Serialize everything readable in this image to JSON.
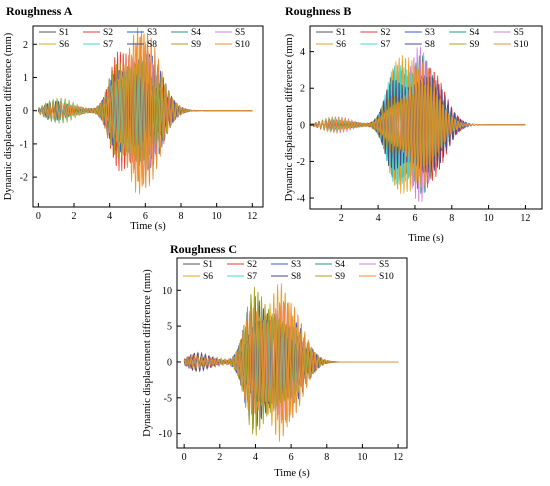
{
  "chart_data": [
    {
      "type": "line",
      "title": "Roughness A",
      "xlabel": "Time (s)",
      "ylabel": "Dynamic displacement difference (mm)",
      "xlim": [
        -0.3,
        12.6
      ],
      "ylim": [
        -2.9,
        2.55
      ],
      "x_ticks": [
        0,
        2,
        4,
        6,
        8,
        10,
        12
      ],
      "y_ticks": [
        -2,
        -1,
        0,
        1,
        2
      ],
      "bursts": [
        [
          1.0,
          0.45
        ],
        [
          4.6,
          1.9
        ],
        [
          5.8,
          2.3
        ]
      ],
      "series": [
        {
          "name": "S1"
        },
        {
          "name": "S2"
        },
        {
          "name": "S3"
        },
        {
          "name": "S4"
        },
        {
          "name": "S5"
        },
        {
          "name": "S6"
        },
        {
          "name": "S7"
        },
        {
          "name": "S8"
        },
        {
          "name": "S9"
        },
        {
          "name": "S10"
        }
      ]
    },
    {
      "type": "line",
      "title": "Roughness B",
      "xlabel": "Time (s)",
      "ylabel": "Dynamic displacement difference (mm)",
      "xlim": [
        0.3,
        12.9
      ],
      "ylim": [
        -4.6,
        5.4
      ],
      "x_ticks": [
        2,
        4,
        6,
        8,
        10,
        12
      ],
      "y_ticks": [
        -4,
        -2,
        0,
        2,
        4
      ],
      "bursts": [
        [
          1.5,
          0.5
        ],
        [
          5.0,
          3.8
        ],
        [
          6.4,
          3.9
        ]
      ],
      "series": [
        {
          "name": "S1"
        },
        {
          "name": "S2"
        },
        {
          "name": "S3"
        },
        {
          "name": "S4"
        },
        {
          "name": "S5"
        },
        {
          "name": "S6"
        },
        {
          "name": "S7"
        },
        {
          "name": "S8"
        },
        {
          "name": "S9"
        },
        {
          "name": "S10"
        }
      ]
    },
    {
      "type": "line",
      "title": "Roughness C",
      "xlabel": "Time (s)",
      "ylabel": "Dynamic displacement difference (mm)",
      "xlim": [
        -0.4,
        12.5
      ],
      "ylim": [
        -12,
        14.5
      ],
      "x_ticks": [
        0,
        2,
        4,
        6,
        8,
        10,
        12
      ],
      "y_ticks": [
        -10,
        -5,
        0,
        5,
        10
      ],
      "bursts": [
        [
          0.8,
          1.4
        ],
        [
          4.0,
          10.5
        ],
        [
          5.5,
          10.0
        ]
      ],
      "series": [
        {
          "name": "S1"
        },
        {
          "name": "S2"
        },
        {
          "name": "S3"
        },
        {
          "name": "S4"
        },
        {
          "name": "S5"
        },
        {
          "name": "S6"
        },
        {
          "name": "S7"
        },
        {
          "name": "S8"
        },
        {
          "name": "S9"
        },
        {
          "name": "S10"
        }
      ]
    }
  ],
  "colors": [
    "#555555",
    "#ee3b2f",
    "#2f5fd0",
    "#1f9e7a",
    "#d680e6",
    "#e6a023",
    "#3fd8d0",
    "#4a4a8a",
    "#a8a020",
    "#f08a30"
  ]
}
